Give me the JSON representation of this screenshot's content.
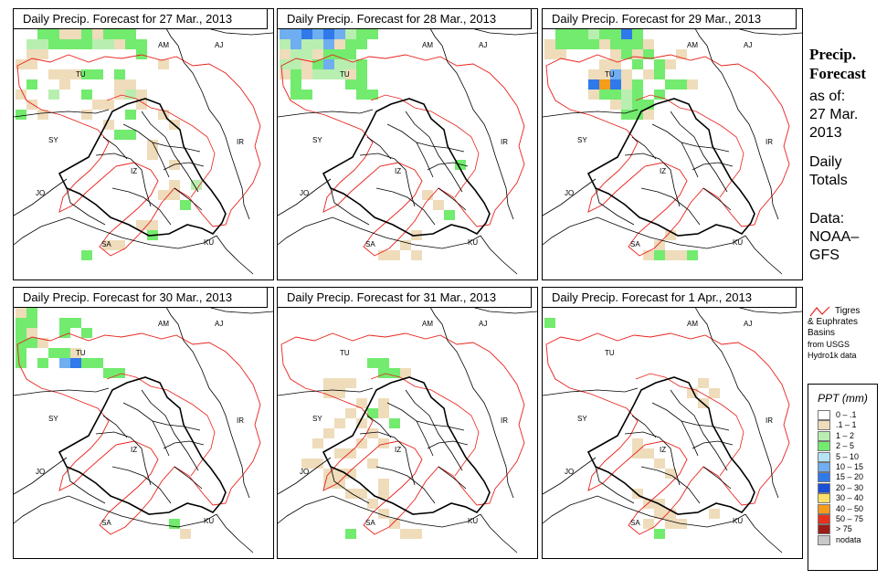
{
  "panels": [
    {
      "title": "Daily Precip. Forecast for  27 Mar., 2013",
      "cells": [
        [
          0,
          2,
          "a"
        ],
        [
          0,
          3,
          "a"
        ],
        [
          0,
          4,
          "b"
        ],
        [
          0,
          5,
          "b"
        ],
        [
          0,
          6,
          "a"
        ],
        [
          0,
          7,
          "b"
        ],
        [
          0,
          8,
          "a"
        ],
        [
          0,
          9,
          "a"
        ],
        [
          0,
          10,
          "a"
        ],
        [
          1,
          1,
          "c"
        ],
        [
          1,
          2,
          "c"
        ],
        [
          1,
          3,
          "a"
        ],
        [
          1,
          4,
          "a"
        ],
        [
          1,
          5,
          "a"
        ],
        [
          1,
          6,
          "a"
        ],
        [
          1,
          7,
          "c"
        ],
        [
          1,
          8,
          "c"
        ],
        [
          1,
          9,
          "b"
        ],
        [
          1,
          10,
          "a"
        ],
        [
          1,
          11,
          "a"
        ],
        [
          2,
          1,
          "b"
        ],
        [
          2,
          2,
          "b"
        ],
        [
          2,
          11,
          "a"
        ],
        [
          3,
          0,
          "b"
        ],
        [
          3,
          1,
          "b"
        ],
        [
          3,
          13,
          "b"
        ],
        [
          4,
          3,
          "b"
        ],
        [
          4,
          4,
          "b"
        ],
        [
          4,
          5,
          "b"
        ],
        [
          4,
          6,
          "a"
        ],
        [
          4,
          7,
          "a"
        ],
        [
          4,
          9,
          "a"
        ],
        [
          5,
          1,
          "a"
        ],
        [
          5,
          4,
          "b"
        ],
        [
          5,
          9,
          "b"
        ],
        [
          5,
          10,
          "b"
        ],
        [
          6,
          0,
          "b"
        ],
        [
          6,
          3,
          "c"
        ],
        [
          6,
          6,
          "a"
        ],
        [
          6,
          9,
          "b"
        ],
        [
          6,
          10,
          "c"
        ],
        [
          6,
          11,
          "b"
        ],
        [
          7,
          1,
          "b"
        ],
        [
          7,
          7,
          "b"
        ],
        [
          7,
          8,
          "b"
        ],
        [
          7,
          11,
          "b"
        ],
        [
          8,
          0,
          "a"
        ],
        [
          8,
          2,
          "b"
        ],
        [
          8,
          6,
          "b"
        ],
        [
          8,
          10,
          "a"
        ],
        [
          8,
          13,
          "b"
        ],
        [
          9,
          8,
          "b"
        ],
        [
          9,
          14,
          "b"
        ],
        [
          10,
          9,
          "a"
        ],
        [
          10,
          10,
          "a"
        ],
        [
          11,
          12,
          "b"
        ],
        [
          12,
          12,
          "b"
        ],
        [
          13,
          14,
          "b"
        ],
        [
          15,
          14,
          "b"
        ],
        [
          15,
          16,
          "c"
        ],
        [
          16,
          13,
          "b"
        ],
        [
          16,
          14,
          "b"
        ],
        [
          17,
          15,
          "a"
        ],
        [
          19,
          11,
          "b"
        ],
        [
          19,
          12,
          "b"
        ],
        [
          20,
          12,
          "a"
        ],
        [
          21,
          8,
          "b"
        ],
        [
          21,
          9,
          "b"
        ],
        [
          22,
          6,
          "a"
        ]
      ]
    },
    {
      "title": "Daily Precip. Forecast for  28 Mar., 2013",
      "cells": [
        [
          0,
          0,
          "d"
        ],
        [
          0,
          1,
          "d"
        ],
        [
          0,
          2,
          "e"
        ],
        [
          0,
          3,
          "d"
        ],
        [
          0,
          4,
          "e"
        ],
        [
          0,
          5,
          "d"
        ],
        [
          0,
          6,
          "c"
        ],
        [
          0,
          7,
          "a"
        ],
        [
          0,
          8,
          "a"
        ],
        [
          1,
          0,
          "c"
        ],
        [
          1,
          1,
          "d"
        ],
        [
          1,
          2,
          "c"
        ],
        [
          1,
          3,
          "c"
        ],
        [
          1,
          4,
          "d"
        ],
        [
          1,
          5,
          "b"
        ],
        [
          1,
          6,
          "a"
        ],
        [
          1,
          7,
          "a"
        ],
        [
          2,
          0,
          "b"
        ],
        [
          2,
          1,
          "c"
        ],
        [
          2,
          2,
          "c"
        ],
        [
          2,
          3,
          "b"
        ],
        [
          2,
          4,
          "a"
        ],
        [
          2,
          5,
          "a"
        ],
        [
          2,
          6,
          "a"
        ],
        [
          3,
          0,
          "c"
        ],
        [
          3,
          1,
          "c"
        ],
        [
          3,
          2,
          "b"
        ],
        [
          3,
          3,
          "a"
        ],
        [
          3,
          4,
          "d"
        ],
        [
          3,
          5,
          "c"
        ],
        [
          3,
          6,
          "c"
        ],
        [
          3,
          7,
          "a"
        ],
        [
          4,
          0,
          "b"
        ],
        [
          4,
          1,
          "a"
        ],
        [
          4,
          2,
          "b"
        ],
        [
          4,
          3,
          "c"
        ],
        [
          4,
          4,
          "c"
        ],
        [
          4,
          5,
          "c"
        ],
        [
          4,
          6,
          "b"
        ],
        [
          4,
          7,
          "a"
        ],
        [
          5,
          1,
          "a"
        ],
        [
          5,
          6,
          "a"
        ],
        [
          5,
          7,
          "a"
        ],
        [
          6,
          1,
          "a"
        ],
        [
          6,
          2,
          "a"
        ],
        [
          6,
          7,
          "a"
        ],
        [
          6,
          8,
          "a"
        ],
        [
          13,
          16,
          "a"
        ],
        [
          16,
          13,
          "b"
        ],
        [
          17,
          14,
          "b"
        ],
        [
          18,
          15,
          "a"
        ],
        [
          20,
          12,
          "b"
        ],
        [
          21,
          11,
          "b"
        ],
        [
          22,
          9,
          "b"
        ],
        [
          22,
          10,
          "b"
        ],
        [
          22,
          12,
          "b"
        ]
      ]
    },
    {
      "title": "Daily Precip. Forecast for  29 Mar., 2013",
      "cells": [
        [
          0,
          1,
          "a"
        ],
        [
          0,
          2,
          "a"
        ],
        [
          0,
          3,
          "a"
        ],
        [
          0,
          4,
          "c"
        ],
        [
          0,
          5,
          "a"
        ],
        [
          0,
          6,
          "a"
        ],
        [
          0,
          7,
          "e"
        ],
        [
          0,
          8,
          "a"
        ],
        [
          1,
          0,
          "b"
        ],
        [
          1,
          1,
          "a"
        ],
        [
          1,
          2,
          "a"
        ],
        [
          1,
          3,
          "a"
        ],
        [
          1,
          4,
          "a"
        ],
        [
          1,
          5,
          "b"
        ],
        [
          1,
          6,
          "a"
        ],
        [
          1,
          7,
          "a"
        ],
        [
          1,
          8,
          "a"
        ],
        [
          1,
          9,
          "b"
        ],
        [
          2,
          0,
          "b"
        ],
        [
          2,
          1,
          "b"
        ],
        [
          2,
          6,
          "b"
        ],
        [
          2,
          7,
          "a"
        ],
        [
          2,
          8,
          "b"
        ],
        [
          2,
          9,
          "a"
        ],
        [
          2,
          12,
          "b"
        ],
        [
          3,
          5,
          "b"
        ],
        [
          3,
          6,
          "b"
        ],
        [
          3,
          8,
          "a"
        ],
        [
          3,
          10,
          "a"
        ],
        [
          3,
          11,
          "b"
        ],
        [
          4,
          4,
          "b"
        ],
        [
          4,
          5,
          "b"
        ],
        [
          4,
          6,
          "d"
        ],
        [
          4,
          7,
          "b"
        ],
        [
          4,
          9,
          "b"
        ],
        [
          4,
          10,
          "a"
        ],
        [
          5,
          4,
          "e"
        ],
        [
          5,
          5,
          "f"
        ],
        [
          5,
          6,
          "e"
        ],
        [
          5,
          7,
          "b"
        ],
        [
          5,
          8,
          "a"
        ],
        [
          5,
          11,
          "a"
        ],
        [
          5,
          12,
          "a"
        ],
        [
          5,
          13,
          "b"
        ],
        [
          6,
          4,
          "b"
        ],
        [
          6,
          5,
          "a"
        ],
        [
          6,
          6,
          "a"
        ],
        [
          6,
          7,
          "c"
        ],
        [
          6,
          8,
          "a"
        ],
        [
          6,
          10,
          "a"
        ],
        [
          7,
          6,
          "b"
        ],
        [
          7,
          7,
          "c"
        ],
        [
          7,
          8,
          "a"
        ],
        [
          7,
          9,
          "a"
        ],
        [
          8,
          7,
          "a"
        ],
        [
          8,
          8,
          "a"
        ],
        [
          8,
          9,
          "b"
        ],
        [
          20,
          11,
          "b"
        ],
        [
          21,
          10,
          "b"
        ],
        [
          22,
          9,
          "b"
        ],
        [
          22,
          10,
          "a"
        ],
        [
          22,
          11,
          "b"
        ],
        [
          22,
          12,
          "b"
        ],
        [
          22,
          13,
          "a"
        ]
      ]
    },
    {
      "title": "Daily Precip. Forecast for  30 Mar., 2013",
      "cells": [
        [
          0,
          0,
          "b"
        ],
        [
          0,
          1,
          "a"
        ],
        [
          1,
          0,
          "a"
        ],
        [
          1,
          1,
          "a"
        ],
        [
          1,
          4,
          "a"
        ],
        [
          1,
          5,
          "a"
        ],
        [
          2,
          0,
          "a"
        ],
        [
          2,
          1,
          "b"
        ],
        [
          2,
          4,
          "a"
        ],
        [
          2,
          6,
          "a"
        ],
        [
          3,
          0,
          "a"
        ],
        [
          3,
          1,
          "a"
        ],
        [
          3,
          2,
          "b"
        ],
        [
          4,
          0,
          "a"
        ],
        [
          4,
          3,
          "a"
        ],
        [
          4,
          4,
          "a"
        ],
        [
          4,
          5,
          "b"
        ],
        [
          5,
          0,
          "a"
        ],
        [
          5,
          2,
          "a"
        ],
        [
          5,
          4,
          "d"
        ],
        [
          5,
          5,
          "e"
        ],
        [
          5,
          6,
          "a"
        ],
        [
          5,
          7,
          "a"
        ],
        [
          6,
          8,
          "a"
        ],
        [
          6,
          9,
          "a"
        ],
        [
          21,
          14,
          "a"
        ],
        [
          22,
          15,
          "b"
        ]
      ]
    },
    {
      "title": "Daily Precip. Forecast for  31 Mar., 2013",
      "cells": [
        [
          5,
          8,
          "a"
        ],
        [
          5,
          9,
          "a"
        ],
        [
          6,
          9,
          "a"
        ],
        [
          6,
          10,
          "a"
        ],
        [
          6,
          11,
          "b"
        ],
        [
          7,
          4,
          "b"
        ],
        [
          7,
          5,
          "b"
        ],
        [
          7,
          6,
          "b"
        ],
        [
          8,
          4,
          "b"
        ],
        [
          8,
          5,
          "b"
        ],
        [
          9,
          7,
          "b"
        ],
        [
          9,
          9,
          "b"
        ],
        [
          10,
          6,
          "b"
        ],
        [
          10,
          8,
          "a"
        ],
        [
          10,
          9,
          "b"
        ],
        [
          11,
          5,
          "b"
        ],
        [
          11,
          7,
          "b"
        ],
        [
          11,
          10,
          "a"
        ],
        [
          12,
          4,
          "b"
        ],
        [
          12,
          8,
          "b"
        ],
        [
          13,
          3,
          "b"
        ],
        [
          13,
          7,
          "b"
        ],
        [
          13,
          9,
          "b"
        ],
        [
          14,
          5,
          "b"
        ],
        [
          14,
          6,
          "b"
        ],
        [
          15,
          2,
          "b"
        ],
        [
          15,
          3,
          "b"
        ],
        [
          15,
          8,
          "b"
        ],
        [
          16,
          4,
          "b"
        ],
        [
          16,
          5,
          "b"
        ],
        [
          16,
          6,
          "b"
        ],
        [
          17,
          4,
          "b"
        ],
        [
          17,
          5,
          "b"
        ],
        [
          17,
          9,
          "b"
        ],
        [
          18,
          6,
          "b"
        ],
        [
          18,
          7,
          "b"
        ],
        [
          18,
          9,
          "b"
        ],
        [
          19,
          8,
          "b"
        ],
        [
          20,
          9,
          "b"
        ],
        [
          21,
          10,
          "b"
        ],
        [
          22,
          11,
          "b"
        ],
        [
          22,
          12,
          "b"
        ],
        [
          22,
          6,
          "a"
        ]
      ]
    },
    {
      "title": "Daily Precip. Forecast for  1 Apr., 2013",
      "cells": [
        [
          1,
          0,
          "a"
        ],
        [
          7,
          14,
          "b"
        ],
        [
          8,
          13,
          "b"
        ],
        [
          8,
          15,
          "b"
        ],
        [
          9,
          14,
          "b"
        ],
        [
          13,
          8,
          "b"
        ],
        [
          14,
          8,
          "b"
        ],
        [
          14,
          9,
          "b"
        ],
        [
          15,
          10,
          "b"
        ],
        [
          16,
          11,
          "b"
        ],
        [
          18,
          8,
          "b"
        ],
        [
          19,
          9,
          "b"
        ],
        [
          19,
          10,
          "b"
        ],
        [
          20,
          10,
          "b"
        ],
        [
          20,
          11,
          "b"
        ],
        [
          21,
          9,
          "b"
        ],
        [
          21,
          11,
          "b"
        ],
        [
          22,
          10,
          "a"
        ],
        [
          21,
          12,
          "b"
        ],
        [
          20,
          15,
          "b"
        ]
      ]
    }
  ],
  "map_labels": {
    "am": "AM",
    "aj": "AJ",
    "tu": "TU",
    "sy": "SY",
    "ir": "IR",
    "iz": "IZ",
    "jo": "JO",
    "sa": "SA",
    "ku": "KU"
  },
  "side": {
    "heading_line1": "Precip.",
    "heading_line2": "Forecast",
    "asof": "as of:",
    "date_line1": "27 Mar.",
    "date_line2": "2013",
    "daily_line1": "Daily",
    "daily_line2": "Totals",
    "data_line1": "Data:",
    "data_line2": "NOAA–",
    "data_line3": "GFS"
  },
  "basin_legend": {
    "line1": "Tigres",
    "line2": "& Euphrates",
    "line3": "Basins",
    "line4": "from USGS",
    "line5": "Hydro1k data",
    "color": "#e8221b"
  },
  "ppt_legend": {
    "title": "PPT (mm)",
    "items": [
      {
        "label": "0 – .1",
        "color": "#ffffff"
      },
      {
        "label": ".1 – 1",
        "color": "#efdcbb"
      },
      {
        "label": "1 – 2",
        "color": "#b8efb0"
      },
      {
        "label": "2 – 5",
        "color": "#72eb6e"
      },
      {
        "label": "5 – 10",
        "color": "#b5e4f7"
      },
      {
        "label": "10 – 15",
        "color": "#6eaef1"
      },
      {
        "label": "15 – 20",
        "color": "#2f79eb"
      },
      {
        "label": "20 – 30",
        "color": "#1c4fd8"
      },
      {
        "label": "30 – 40",
        "color": "#fde06a"
      },
      {
        "label": "40 – 50",
        "color": "#f59c1a"
      },
      {
        "label": "50 – 75",
        "color": "#e8301b"
      },
      {
        "label": "> 75",
        "color": "#9c1c17"
      },
      {
        "label": "nodata",
        "color": "#c8c8c8"
      }
    ]
  },
  "cell_colors": {
    "a": "#72eb6e",
    "b": "#efdcbb",
    "c": "#b8efb0",
    "d": "#6eaef1",
    "e": "#2f79eb",
    "f": "#f59c1a"
  }
}
